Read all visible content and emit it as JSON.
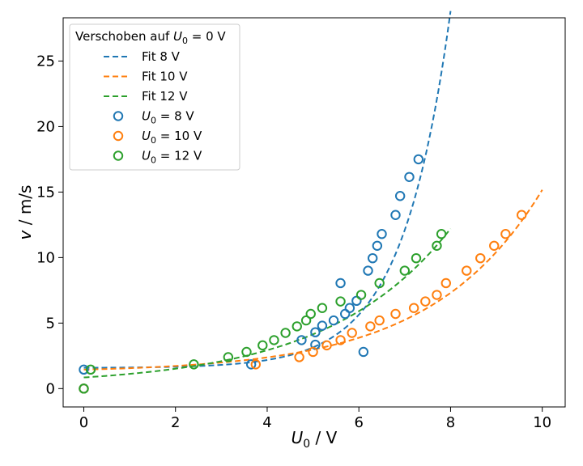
{
  "chart_data": {
    "type": "scatter",
    "title": "",
    "xlabel": "U₀ / V",
    "ylabel": "v / m/s",
    "xlim": [
      -0.45,
      10.5
    ],
    "ylim": [
      -1.4,
      28.3
    ],
    "xticks": [
      0,
      2,
      4,
      6,
      8,
      10
    ],
    "yticks": [
      0,
      5,
      10,
      15,
      20,
      25
    ],
    "grid": false,
    "legend": {
      "placement": "top-left",
      "title": "Verschoben auf U₀ = 0 V",
      "entries": [
        "Fit 8 V",
        "Fit 10 V",
        "Fit 12 V",
        "U₀ = 8 V",
        "U₀ = 10 V",
        "U₀ = 12 V"
      ]
    },
    "fits": [
      {
        "name": "Fit 8 V",
        "color": "#1f77b4",
        "x_range": [
          0,
          8.0
        ],
        "model": "a + b*exp(c*x)",
        "params": {
          "a": 1.577,
          "b": 0.01348,
          "c": 0.9514
        }
      },
      {
        "name": "Fit 10 V",
        "color": "#ff7f0e",
        "x_range": [
          0,
          10.0
        ],
        "model": "a + b*exp(c*x)",
        "params": {
          "a": 1.224,
          "b": 0.2205,
          "c": 0.4147
        }
      },
      {
        "name": "Fit 12 V",
        "color": "#2ca02c",
        "x_range": [
          0,
          8.0
        ],
        "model": "a + b*exp(c*x)",
        "params": {
          "a": 0.25,
          "b": 0.6,
          "c": 0.374
        }
      }
    ],
    "series": [
      {
        "name": "U₀ = 8 V",
        "color": "#1f77b4",
        "points": [
          [
            0.0,
            1.45
          ],
          [
            0.0,
            0.0
          ],
          [
            3.65,
            1.85
          ],
          [
            4.75,
            3.7
          ],
          [
            5.05,
            4.3
          ],
          [
            5.05,
            3.35
          ],
          [
            5.2,
            4.8
          ],
          [
            5.45,
            5.2
          ],
          [
            5.6,
            8.05
          ],
          [
            5.7,
            5.7
          ],
          [
            5.8,
            6.15
          ],
          [
            5.95,
            6.7
          ],
          [
            6.1,
            2.8
          ],
          [
            6.2,
            9.0
          ],
          [
            6.3,
            9.95
          ],
          [
            6.4,
            10.9
          ],
          [
            6.5,
            11.8
          ],
          [
            6.8,
            13.25
          ],
          [
            6.9,
            14.7
          ],
          [
            7.1,
            16.15
          ],
          [
            7.3,
            17.5
          ]
        ]
      },
      {
        "name": "U₀ = 10 V",
        "color": "#ff7f0e",
        "points": [
          [
            0.0,
            0.0
          ],
          [
            3.75,
            1.85
          ],
          [
            4.7,
            2.4
          ],
          [
            5.0,
            2.8
          ],
          [
            5.3,
            3.3
          ],
          [
            5.6,
            3.7
          ],
          [
            5.85,
            4.25
          ],
          [
            6.25,
            4.75
          ],
          [
            6.45,
            5.2
          ],
          [
            6.8,
            5.7
          ],
          [
            7.2,
            6.15
          ],
          [
            7.45,
            6.65
          ],
          [
            7.7,
            7.15
          ],
          [
            7.9,
            8.05
          ],
          [
            8.35,
            9.0
          ],
          [
            8.65,
            9.95
          ],
          [
            8.95,
            10.9
          ],
          [
            9.2,
            11.8
          ],
          [
            9.55,
            13.25
          ]
        ]
      },
      {
        "name": "U₀ = 12 V",
        "color": "#2ca02c",
        "points": [
          [
            0.0,
            0.0
          ],
          [
            0.15,
            1.45
          ],
          [
            2.4,
            1.85
          ],
          [
            3.15,
            2.4
          ],
          [
            3.55,
            2.8
          ],
          [
            3.9,
            3.3
          ],
          [
            4.15,
            3.7
          ],
          [
            4.4,
            4.25
          ],
          [
            4.65,
            4.75
          ],
          [
            4.85,
            5.2
          ],
          [
            4.95,
            5.7
          ],
          [
            5.2,
            6.15
          ],
          [
            5.6,
            6.65
          ],
          [
            6.05,
            7.15
          ],
          [
            6.45,
            8.05
          ],
          [
            7.0,
            9.0
          ],
          [
            7.25,
            9.95
          ],
          [
            7.7,
            10.9
          ],
          [
            7.8,
            11.8
          ]
        ]
      }
    ]
  }
}
